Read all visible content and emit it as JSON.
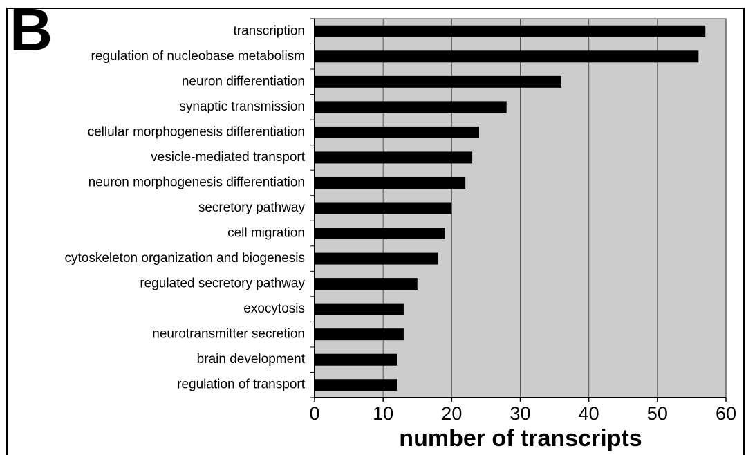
{
  "chart_data": {
    "type": "barh",
    "panel_label": "B",
    "xlabel": "number of transcripts",
    "categories": [
      "transcription",
      "regulation of nucleobase metabolism",
      "neuron differentiation",
      "synaptic transmission",
      "cellular morphogenesis differentiation",
      "vesicle-mediated transport",
      "neuron morphogenesis differentiation",
      "secretory pathway",
      "cell migration",
      "cytoskeleton organization and biogenesis",
      "regulated secretory pathway",
      "exocytosis",
      "neurotransmitter secretion",
      "brain development",
      "regulation of transport"
    ],
    "values": [
      57,
      56,
      36,
      28,
      24,
      23,
      22,
      20,
      19,
      18,
      15,
      13,
      13,
      12,
      12
    ],
    "color": "#000000",
    "xlim": [
      0,
      60
    ],
    "xticks": [
      0,
      10,
      20,
      30,
      40,
      50,
      60
    ],
    "grid": true
  }
}
